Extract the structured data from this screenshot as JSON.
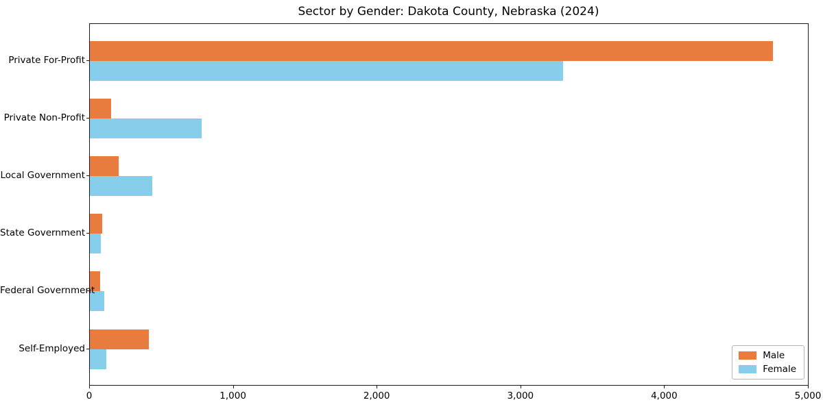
{
  "chart_data": {
    "type": "bar",
    "orientation": "horizontal",
    "title": "Sector by Gender: Dakota County, Nebraska (2024)",
    "categories": [
      "Private For-Profit",
      "Private Non-Profit",
      "Local Government",
      "State Government",
      "Federal Government",
      "Self-Employed"
    ],
    "series": [
      {
        "name": "Male",
        "color": "#e87c3e",
        "values": [
          4750,
          150,
          200,
          85,
          70,
          410
        ]
      },
      {
        "name": "Female",
        "color": "#87ceeb",
        "values": [
          3290,
          780,
          435,
          75,
          100,
          115
        ]
      }
    ],
    "xlabel": "",
    "ylabel": "",
    "xlim": [
      0,
      5000
    ],
    "x_ticks": [
      0,
      1000,
      2000,
      3000,
      4000,
      5000
    ],
    "x_tick_labels": [
      "0",
      "1,000",
      "2,000",
      "3,000",
      "4,000",
      "5,000"
    ],
    "grid": false,
    "legend": {
      "position": "lower right",
      "entries": [
        "Male",
        "Female"
      ]
    }
  },
  "colors": {
    "male": "#e87c3e",
    "female": "#87ceeb",
    "axis": "#1a1a1a",
    "background": "#ffffff",
    "legend_border": "#b5b5b5"
  }
}
